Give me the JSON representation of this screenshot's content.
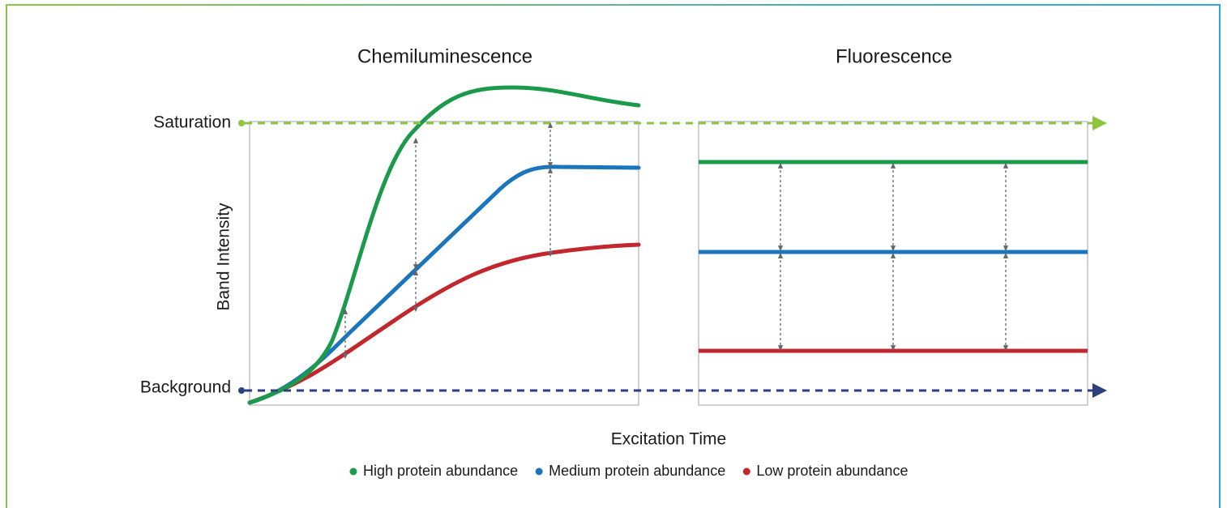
{
  "titles": [
    "Chemiluminescence",
    "Fluorescence"
  ],
  "levels": {
    "top": "Saturation",
    "bottom": "Background"
  },
  "y_axis_label": "Band Intensity",
  "x_axis_label": "Excitation Time",
  "legend": [
    {
      "label": "High protein abundance",
      "color": "#1a9a4a"
    },
    {
      "label": "Medium protein abundance",
      "color": "#1b75bc"
    },
    {
      "label": "Low protein abundance",
      "color": "#c1272d"
    }
  ]
}
